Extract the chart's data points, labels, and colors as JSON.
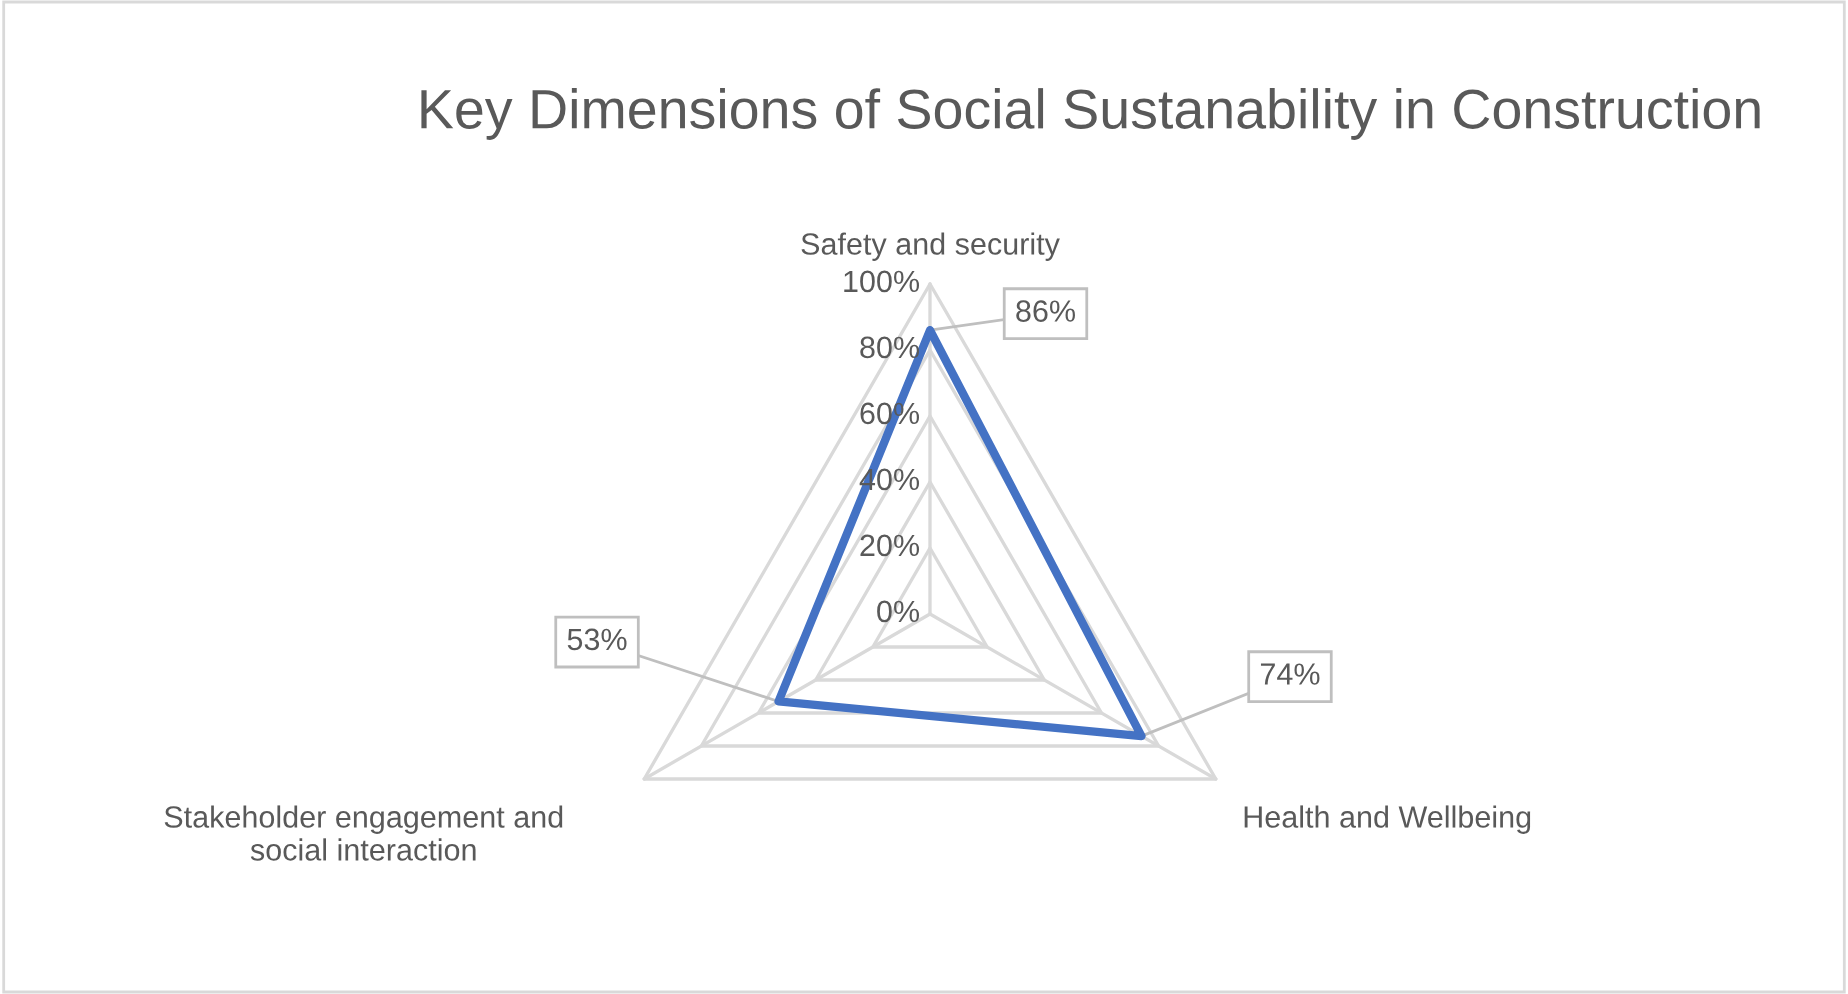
{
  "chart_data": {
    "type": "radar",
    "title": "Key Dimensions of Social Sustanability in Construction",
    "categories": [
      "Safety and security",
      "Health and Wellbeing",
      "Stakeholder engagement and social interaction"
    ],
    "series": [
      {
        "color": "#4472c4",
        "values": [
          86,
          74,
          53
        ],
        "value_labels": [
          "86%",
          "74%",
          "53%"
        ]
      }
    ],
    "ylim": [
      0,
      100
    ],
    "yticks": [
      {
        "value": 0,
        "label": "0%"
      },
      {
        "value": 20,
        "label": "20%"
      },
      {
        "value": 40,
        "label": "40%"
      },
      {
        "value": 60,
        "label": "60%"
      },
      {
        "value": 80,
        "label": "80%"
      },
      {
        "value": 100,
        "label": "100%"
      }
    ],
    "grid": true,
    "line_style": "solid"
  }
}
